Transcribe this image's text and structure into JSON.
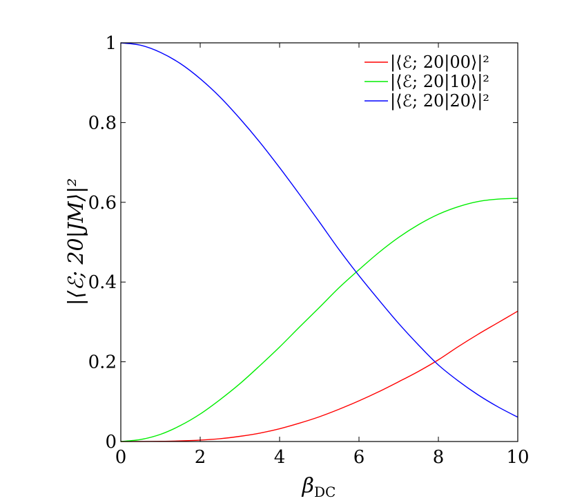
{
  "chart_data": {
    "type": "line",
    "title": "",
    "xlabel": "β_DC",
    "xlabel_main": "β",
    "xlabel_sub": "DC",
    "ylabel": "|⟨ℰ; 20|JM⟩|²",
    "xlim": [
      0,
      10
    ],
    "ylim": [
      0,
      1
    ],
    "xticks": [
      0,
      2,
      4,
      6,
      8,
      10
    ],
    "xtick_labels": [
      "0",
      "2",
      "4",
      "6",
      "8",
      "10"
    ],
    "yticks": [
      0,
      0.2,
      0.4,
      0.6,
      0.8,
      1
    ],
    "ytick_labels": [
      "0",
      "0.2",
      "0.4",
      "0.6",
      "0.8",
      "1"
    ],
    "grid": false,
    "legend_position": "top-right",
    "x": [
      0,
      0.5,
      1,
      1.5,
      2,
      2.5,
      3,
      3.5,
      4,
      4.5,
      5,
      5.5,
      6,
      6.5,
      7,
      7.5,
      8,
      8.5,
      9,
      9.5,
      10
    ],
    "series": [
      {
        "name": "|⟨ℰ; 20|00⟩|²",
        "color": "#ff0000",
        "values": [
          0,
          0.0001,
          0.0005,
          0.0015,
          0.0035,
          0.007,
          0.013,
          0.021,
          0.032,
          0.046,
          0.062,
          0.081,
          0.102,
          0.125,
          0.15,
          0.176,
          0.205,
          0.238,
          0.269,
          0.298,
          0.327
        ]
      },
      {
        "name": "|⟨ℰ; 20|10⟩|²",
        "color": "#00ee00",
        "values": [
          0,
          0.005,
          0.018,
          0.04,
          0.069,
          0.105,
          0.145,
          0.19,
          0.237,
          0.287,
          0.336,
          0.386,
          0.431,
          0.474,
          0.512,
          0.544,
          0.57,
          0.589,
          0.602,
          0.608,
          0.61
        ]
      },
      {
        "name": "|⟨ℰ; 20|20⟩|²",
        "color": "#0000ff",
        "values": [
          1,
          0.994,
          0.976,
          0.948,
          0.91,
          0.864,
          0.81,
          0.751,
          0.687,
          0.62,
          0.551,
          0.481,
          0.416,
          0.355,
          0.296,
          0.242,
          0.192,
          0.152,
          0.117,
          0.087,
          0.061
        ]
      }
    ]
  }
}
